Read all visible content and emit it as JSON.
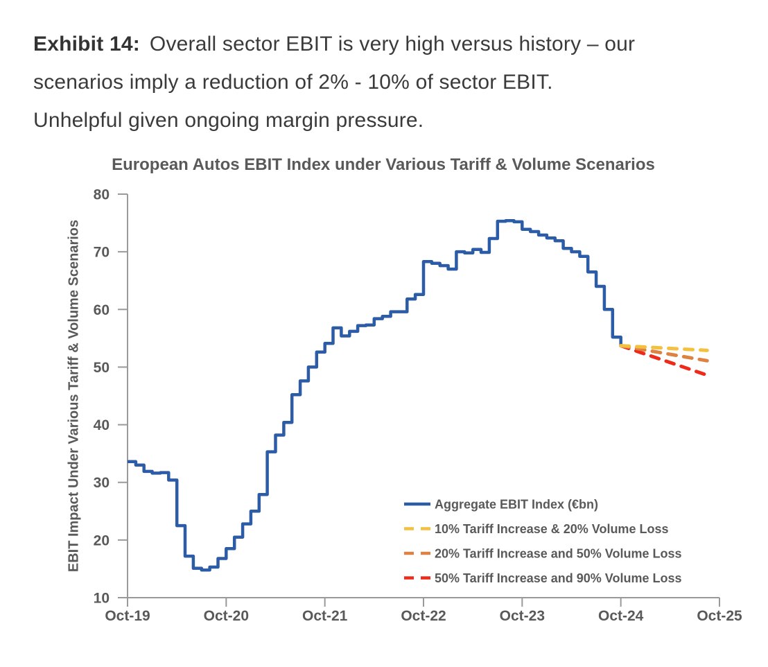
{
  "exhibit": {
    "label": "Exhibit 14:",
    "line1": "Overall sector EBIT is very high versus history – our",
    "line2": "scenarios imply a reduction of 2% - 10% of sector EBIT.",
    "line3": "Unhelpful given ongoing margin pressure."
  },
  "chart_data": {
    "type": "line",
    "title": "European Autos EBIT Index under Various Tariff & Volume Scenarios",
    "xlabel": "",
    "ylabel": "EBIT Impact Under Various Tariff & Volume Scenarios",
    "ylim": [
      10,
      80
    ],
    "y_ticks": [
      80,
      70,
      60,
      50,
      40,
      30,
      20,
      10
    ],
    "x_tick_labels": [
      "Oct-19",
      "Oct-20",
      "Oct-21",
      "Oct-22",
      "Oct-23",
      "Oct-24",
      "Oct-25"
    ],
    "months_per_tick": 12,
    "x_total_months": 72,
    "grid": false,
    "legend_position": "lower right",
    "axis_color": "#999999",
    "text_color": "#595959",
    "series": [
      {
        "name": "Aggregate EBIT Index (€bn)",
        "color": "#2D5CA6",
        "style": "solid",
        "interpolation": "step",
        "start_month": 0,
        "values": [
          33.6,
          33.0,
          31.9,
          31.6,
          31.7,
          30.4,
          22.5,
          17.2,
          15.1,
          14.8,
          15.3,
          16.8,
          18.5,
          20.5,
          22.8,
          25.0,
          27.9,
          35.3,
          38.2,
          40.4,
          45.2,
          47.6,
          50.0,
          52.6,
          54.1,
          56.8,
          55.4,
          56.2,
          57.2,
          57.3,
          58.4,
          58.8,
          59.6,
          59.6,
          61.8,
          62.6,
          68.3,
          68.0,
          67.6,
          67.0,
          70.0,
          69.8,
          70.4,
          69.9,
          72.3,
          75.3,
          75.4,
          75.2,
          73.9,
          73.5,
          72.9,
          72.4,
          71.9,
          70.6,
          70.0,
          69.2,
          66.5,
          64.0,
          60.0,
          55.2,
          53.7
        ]
      },
      {
        "name": "10% Tariff Increase & 20% Volume Loss",
        "color": "#F3C13F",
        "style": "dashed",
        "start_month": 60,
        "start_value": 53.7,
        "end_month": 70.5,
        "end_value": 52.9
      },
      {
        "name": "20% Tariff Increase and 50% Volume Loss",
        "color": "#DE8244",
        "style": "dashed",
        "start_month": 60,
        "start_value": 53.7,
        "end_month": 70.5,
        "end_value": 51.1
      },
      {
        "name": "50% Tariff Increase and 90% Volume Loss",
        "color": "#EE2A1B",
        "style": "dashed",
        "start_month": 60,
        "start_value": 53.7,
        "end_month": 70.5,
        "end_value": 48.6
      }
    ]
  }
}
